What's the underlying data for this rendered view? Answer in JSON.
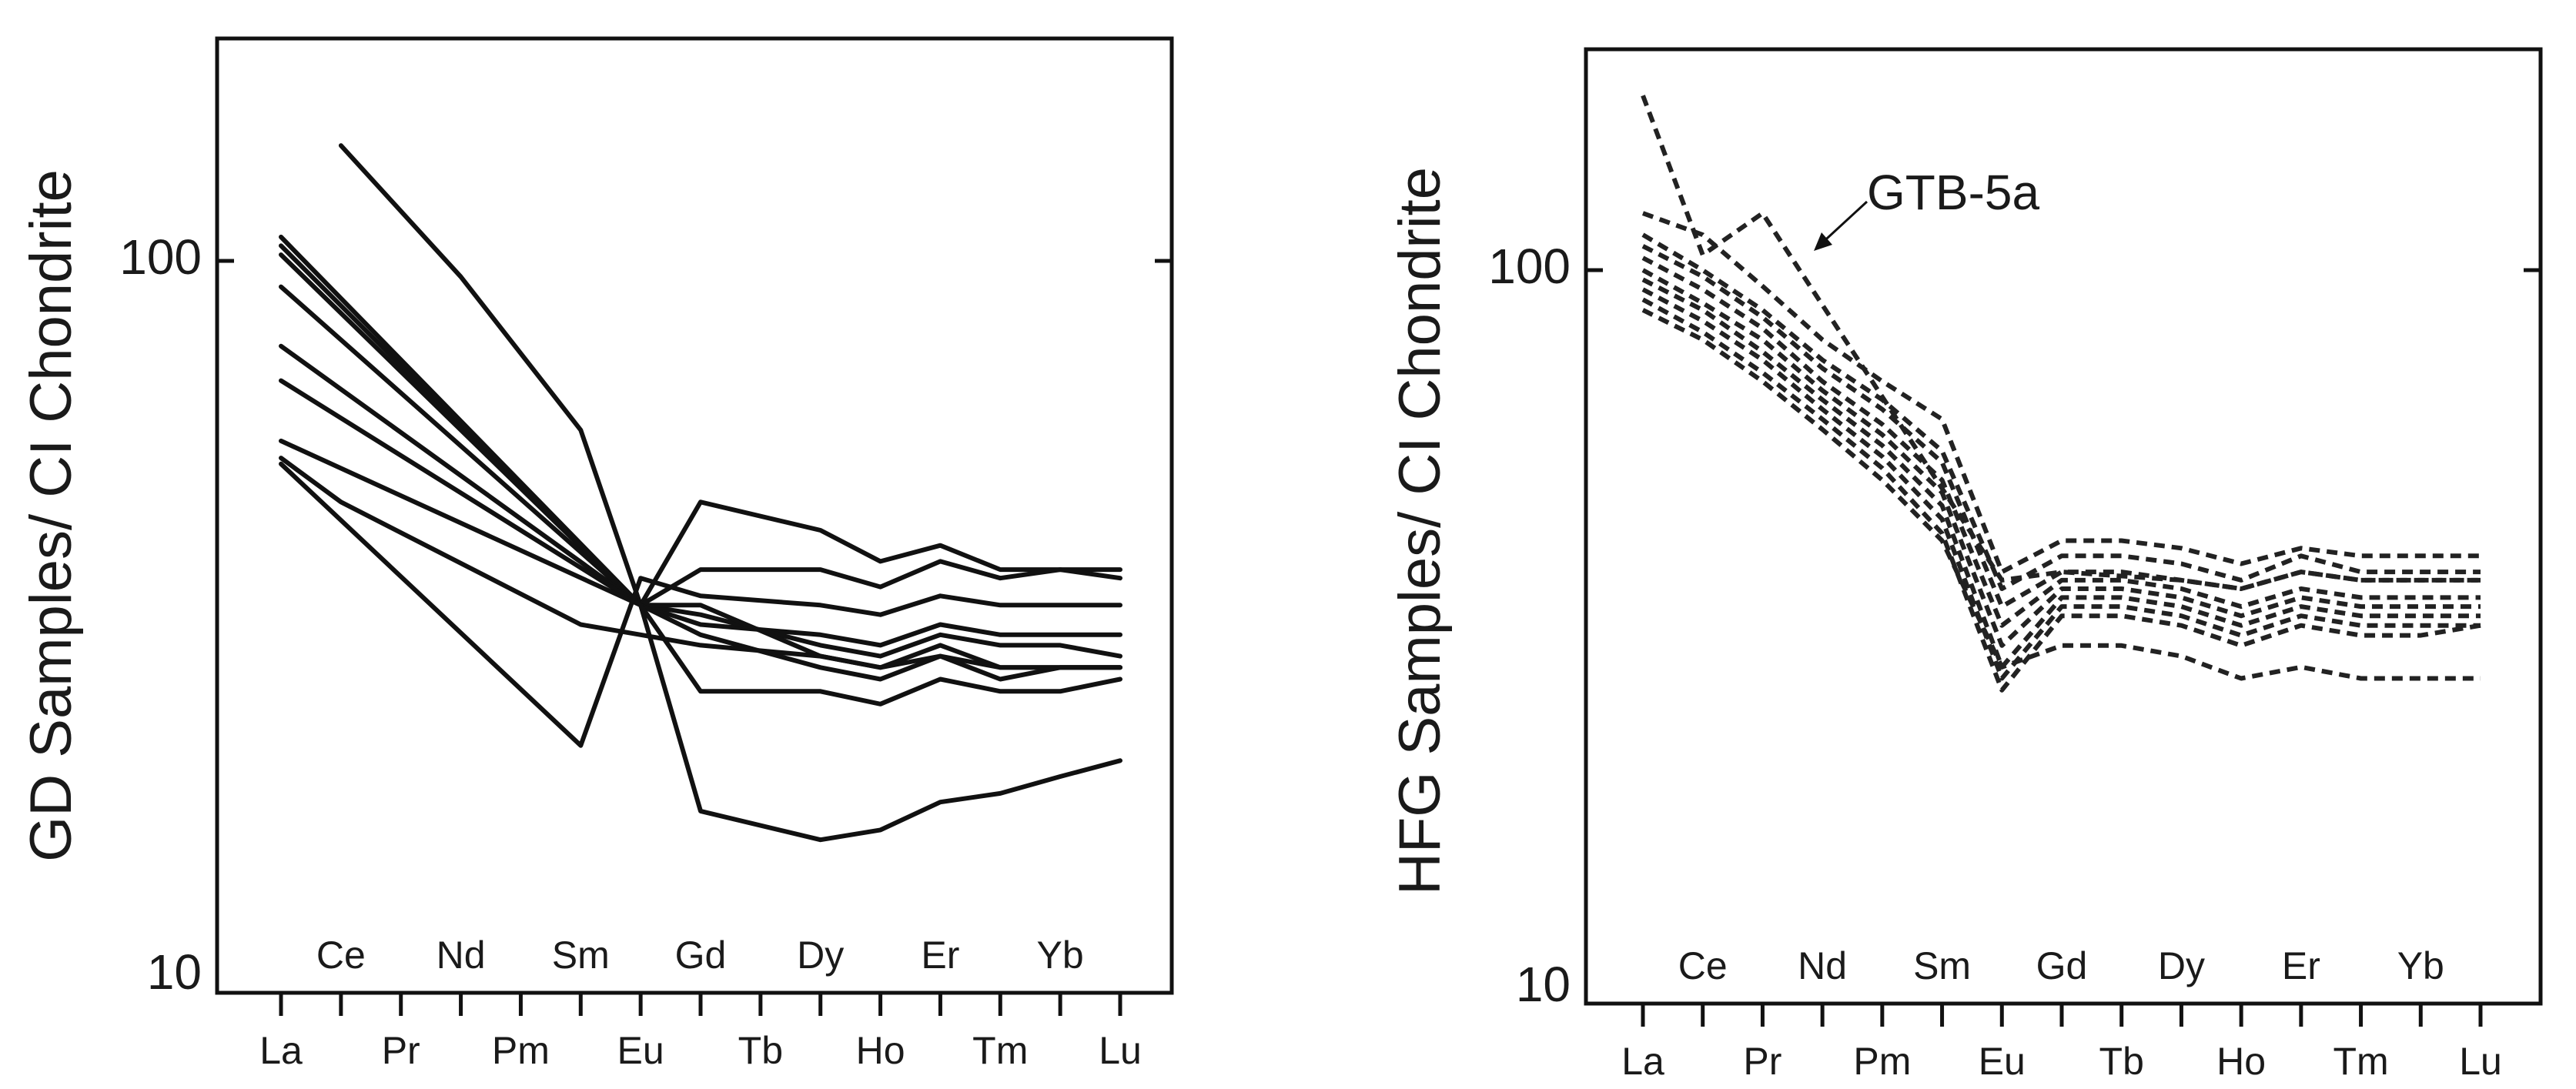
{
  "chart_data": [
    {
      "type": "line",
      "ylabel": "GD Samples/ CI Chondrite",
      "yscale": "log",
      "ylim": [
        10,
        200
      ],
      "yticks": [
        "10",
        "100"
      ],
      "x_upper_labels": [
        "Ce",
        "Nd",
        "Sm",
        "Gd",
        "Dy",
        "Er",
        "Yb"
      ],
      "x_lower_labels": [
        "La",
        "Pr",
        "Pm",
        "Eu",
        "Tb",
        "Ho",
        "Tm",
        "Lu"
      ],
      "x": [
        "La",
        "Ce",
        "Pr",
        "Nd",
        "Pm",
        "Sm",
        "Eu",
        "Gd",
        "Tb",
        "Dy",
        "Ho",
        "Er",
        "Tm",
        "Yb",
        "Lu"
      ],
      "line_style": "solid",
      "series": [
        {
          "values": [
            null,
            145,
            null,
            95,
            null,
            58,
            33,
            46,
            null,
            42,
            38,
            40,
            37,
            37,
            37
          ]
        },
        {
          "values": [
            105,
            null,
            null,
            null,
            null,
            null,
            33,
            37,
            null,
            37,
            35,
            38,
            36,
            37,
            36
          ]
        },
        {
          "values": [
            108,
            null,
            null,
            null,
            null,
            null,
            33,
            31,
            null,
            30,
            29,
            31,
            30,
            30,
            30
          ]
        },
        {
          "values": [
            102,
            null,
            null,
            null,
            null,
            null,
            33,
            32,
            null,
            29,
            28,
            30,
            29,
            29,
            28
          ]
        },
        {
          "values": [
            92,
            null,
            null,
            null,
            null,
            null,
            33,
            33,
            null,
            28,
            27,
            29,
            27,
            27,
            27
          ]
        },
        {
          "values": [
            76,
            null,
            null,
            null,
            null,
            null,
            33,
            30,
            null,
            27,
            26,
            28,
            26,
            27,
            27
          ]
        },
        {
          "values": [
            68,
            null,
            null,
            null,
            null,
            null,
            33,
            25,
            null,
            25,
            24,
            26,
            25,
            25,
            26
          ]
        },
        {
          "values": [
            56,
            null,
            null,
            null,
            null,
            null,
            33,
            17,
            null,
            15.5,
            16,
            17.5,
            18,
            19,
            20
          ]
        },
        {
          "values": [
            53,
            46,
            null,
            null,
            null,
            31,
            30,
            29,
            null,
            28,
            27,
            28,
            27,
            27,
            27
          ]
        },
        {
          "values": [
            52,
            null,
            null,
            null,
            null,
            21,
            36,
            34,
            null,
            33,
            32,
            34,
            33,
            33,
            33
          ]
        }
      ]
    },
    {
      "type": "line",
      "ylabel": "HFG Samples/ CI Chondrite",
      "yscale": "log",
      "ylim": [
        10,
        200
      ],
      "yticks": [
        "10",
        "100"
      ],
      "x_upper_labels": [
        "Ce",
        "Nd",
        "Sm",
        "Gd",
        "Dy",
        "Er",
        "Yb"
      ],
      "x_lower_labels": [
        "La",
        "Pr",
        "Pm",
        "Eu",
        "Tb",
        "Ho",
        "Tm",
        "Lu"
      ],
      "x": [
        "La",
        "Ce",
        "Pr",
        "Nd",
        "Pm",
        "Sm",
        "Eu",
        "Gd",
        "Tb",
        "Dy",
        "Ho",
        "Er",
        "Tm",
        "Yb",
        "Lu"
      ],
      "line_style": "dashed",
      "annotation": {
        "text": "GTB-5a",
        "points_to": "Pr"
      },
      "series": [
        {
          "values": [
            175,
            105,
            120,
            null,
            null,
            null,
            37,
            38,
            null,
            37,
            36,
            38,
            37,
            37,
            37
          ]
        },
        {
          "values": [
            120,
            112,
            95,
            80,
            70,
            62,
            38,
            42,
            42,
            41,
            39,
            41,
            40,
            40,
            40
          ]
        },
        {
          "values": [
            112,
            100,
            88,
            75,
            66,
            56,
            36,
            40,
            40,
            39,
            37,
            40,
            38,
            38,
            38
          ]
        },
        {
          "values": [
            108,
            98,
            86,
            73,
            64,
            54,
            34,
            38,
            38,
            37,
            36,
            38,
            37,
            37,
            37
          ]
        },
        {
          "values": [
            104,
            94,
            83,
            70,
            61,
            51,
            32,
            37,
            37,
            36,
            34,
            36,
            35,
            35,
            35
          ]
        },
        {
          "values": [
            100,
            90,
            80,
            68,
            59,
            49,
            30,
            36,
            36,
            35,
            33,
            35,
            34,
            34,
            34
          ]
        },
        {
          "values": [
            97,
            88,
            77,
            66,
            57,
            47,
            28,
            35,
            35,
            34,
            32,
            34,
            33,
            33,
            33
          ]
        },
        {
          "values": [
            94,
            85,
            75,
            64,
            55,
            45,
            27,
            34,
            34,
            33,
            31,
            33,
            32,
            32,
            32
          ]
        },
        {
          "values": [
            91,
            82,
            72,
            62,
            53,
            43,
            26,
            33,
            33,
            32,
            30,
            32,
            31,
            31,
            32
          ]
        },
        {
          "values": [
            88,
            80,
            70,
            60,
            51,
            42,
            28,
            30,
            30,
            29,
            27,
            28,
            27,
            27,
            27
          ]
        }
      ]
    }
  ]
}
